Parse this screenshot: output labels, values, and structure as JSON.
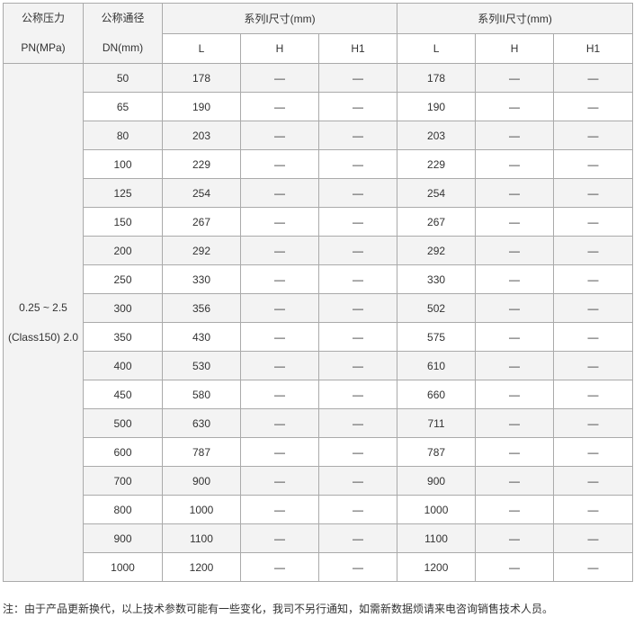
{
  "header": {
    "pressure_line1": "公称压力",
    "pressure_line2": "PN(MPa)",
    "dn_line1": "公称通径",
    "dn_line2": "DN(mm)",
    "series1": "系列I尺寸(mm)",
    "series2": "系列II尺寸(mm)",
    "sub": [
      "L",
      "H",
      "H1",
      "L",
      "H",
      "H1"
    ]
  },
  "pressure_line1": "0.25 ~ 2.5",
  "pressure_line2": "(Class150) 2.0",
  "rows": [
    {
      "dn": "50",
      "l1": "178",
      "h1": "—",
      "hh1": "—",
      "l2": "178",
      "h2": "—",
      "hh2": "—"
    },
    {
      "dn": "65",
      "l1": "190",
      "h1": "—",
      "hh1": "—",
      "l2": "190",
      "h2": "—",
      "hh2": "—"
    },
    {
      "dn": "80",
      "l1": "203",
      "h1": "—",
      "hh1": "—",
      "l2": "203",
      "h2": "—",
      "hh2": "—"
    },
    {
      "dn": "100",
      "l1": "229",
      "h1": "—",
      "hh1": "—",
      "l2": "229",
      "h2": "—",
      "hh2": "—"
    },
    {
      "dn": "125",
      "l1": "254",
      "h1": "—",
      "hh1": "—",
      "l2": "254",
      "h2": "—",
      "hh2": "—"
    },
    {
      "dn": "150",
      "l1": "267",
      "h1": "—",
      "hh1": "—",
      "l2": "267",
      "h2": "—",
      "hh2": "—"
    },
    {
      "dn": "200",
      "l1": "292",
      "h1": "—",
      "hh1": "—",
      "l2": "292",
      "h2": "—",
      "hh2": "—"
    },
    {
      "dn": "250",
      "l1": "330",
      "h1": "—",
      "hh1": "—",
      "l2": "330",
      "h2": "—",
      "hh2": "—"
    },
    {
      "dn": "300",
      "l1": "356",
      "h1": "—",
      "hh1": "—",
      "l2": "502",
      "h2": "—",
      "hh2": "—"
    },
    {
      "dn": "350",
      "l1": "430",
      "h1": "—",
      "hh1": "—",
      "l2": "575",
      "h2": "—",
      "hh2": "—"
    },
    {
      "dn": "400",
      "l1": "530",
      "h1": "—",
      "hh1": "—",
      "l2": "610",
      "h2": "—",
      "hh2": "—"
    },
    {
      "dn": "450",
      "l1": "580",
      "h1": "—",
      "hh1": "—",
      "l2": "660",
      "h2": "—",
      "hh2": "—"
    },
    {
      "dn": "500",
      "l1": "630",
      "h1": "—",
      "hh1": "—",
      "l2": "711",
      "h2": "—",
      "hh2": "—"
    },
    {
      "dn": "600",
      "l1": "787",
      "h1": "—",
      "hh1": "—",
      "l2": "787",
      "h2": "—",
      "hh2": "—"
    },
    {
      "dn": "700",
      "l1": "900",
      "h1": "—",
      "hh1": "—",
      "l2": "900",
      "h2": "—",
      "hh2": "—"
    },
    {
      "dn": "800",
      "l1": "1000",
      "h1": "—",
      "hh1": "—",
      "l2": "1000",
      "h2": "—",
      "hh2": "—"
    },
    {
      "dn": "900",
      "l1": "1100",
      "h1": "—",
      "hh1": "—",
      "l2": "1100",
      "h2": "—",
      "hh2": "—"
    },
    {
      "dn": "1000",
      "l1": "1200",
      "h1": "—",
      "hh1": "—",
      "l2": "1200",
      "h2": "—",
      "hh2": "—"
    }
  ],
  "note": "注：由于产品更新换代，以上技术参数可能有一些变化，我司不另行通知，如需新数据烦请来电咨询销售技术人员。"
}
